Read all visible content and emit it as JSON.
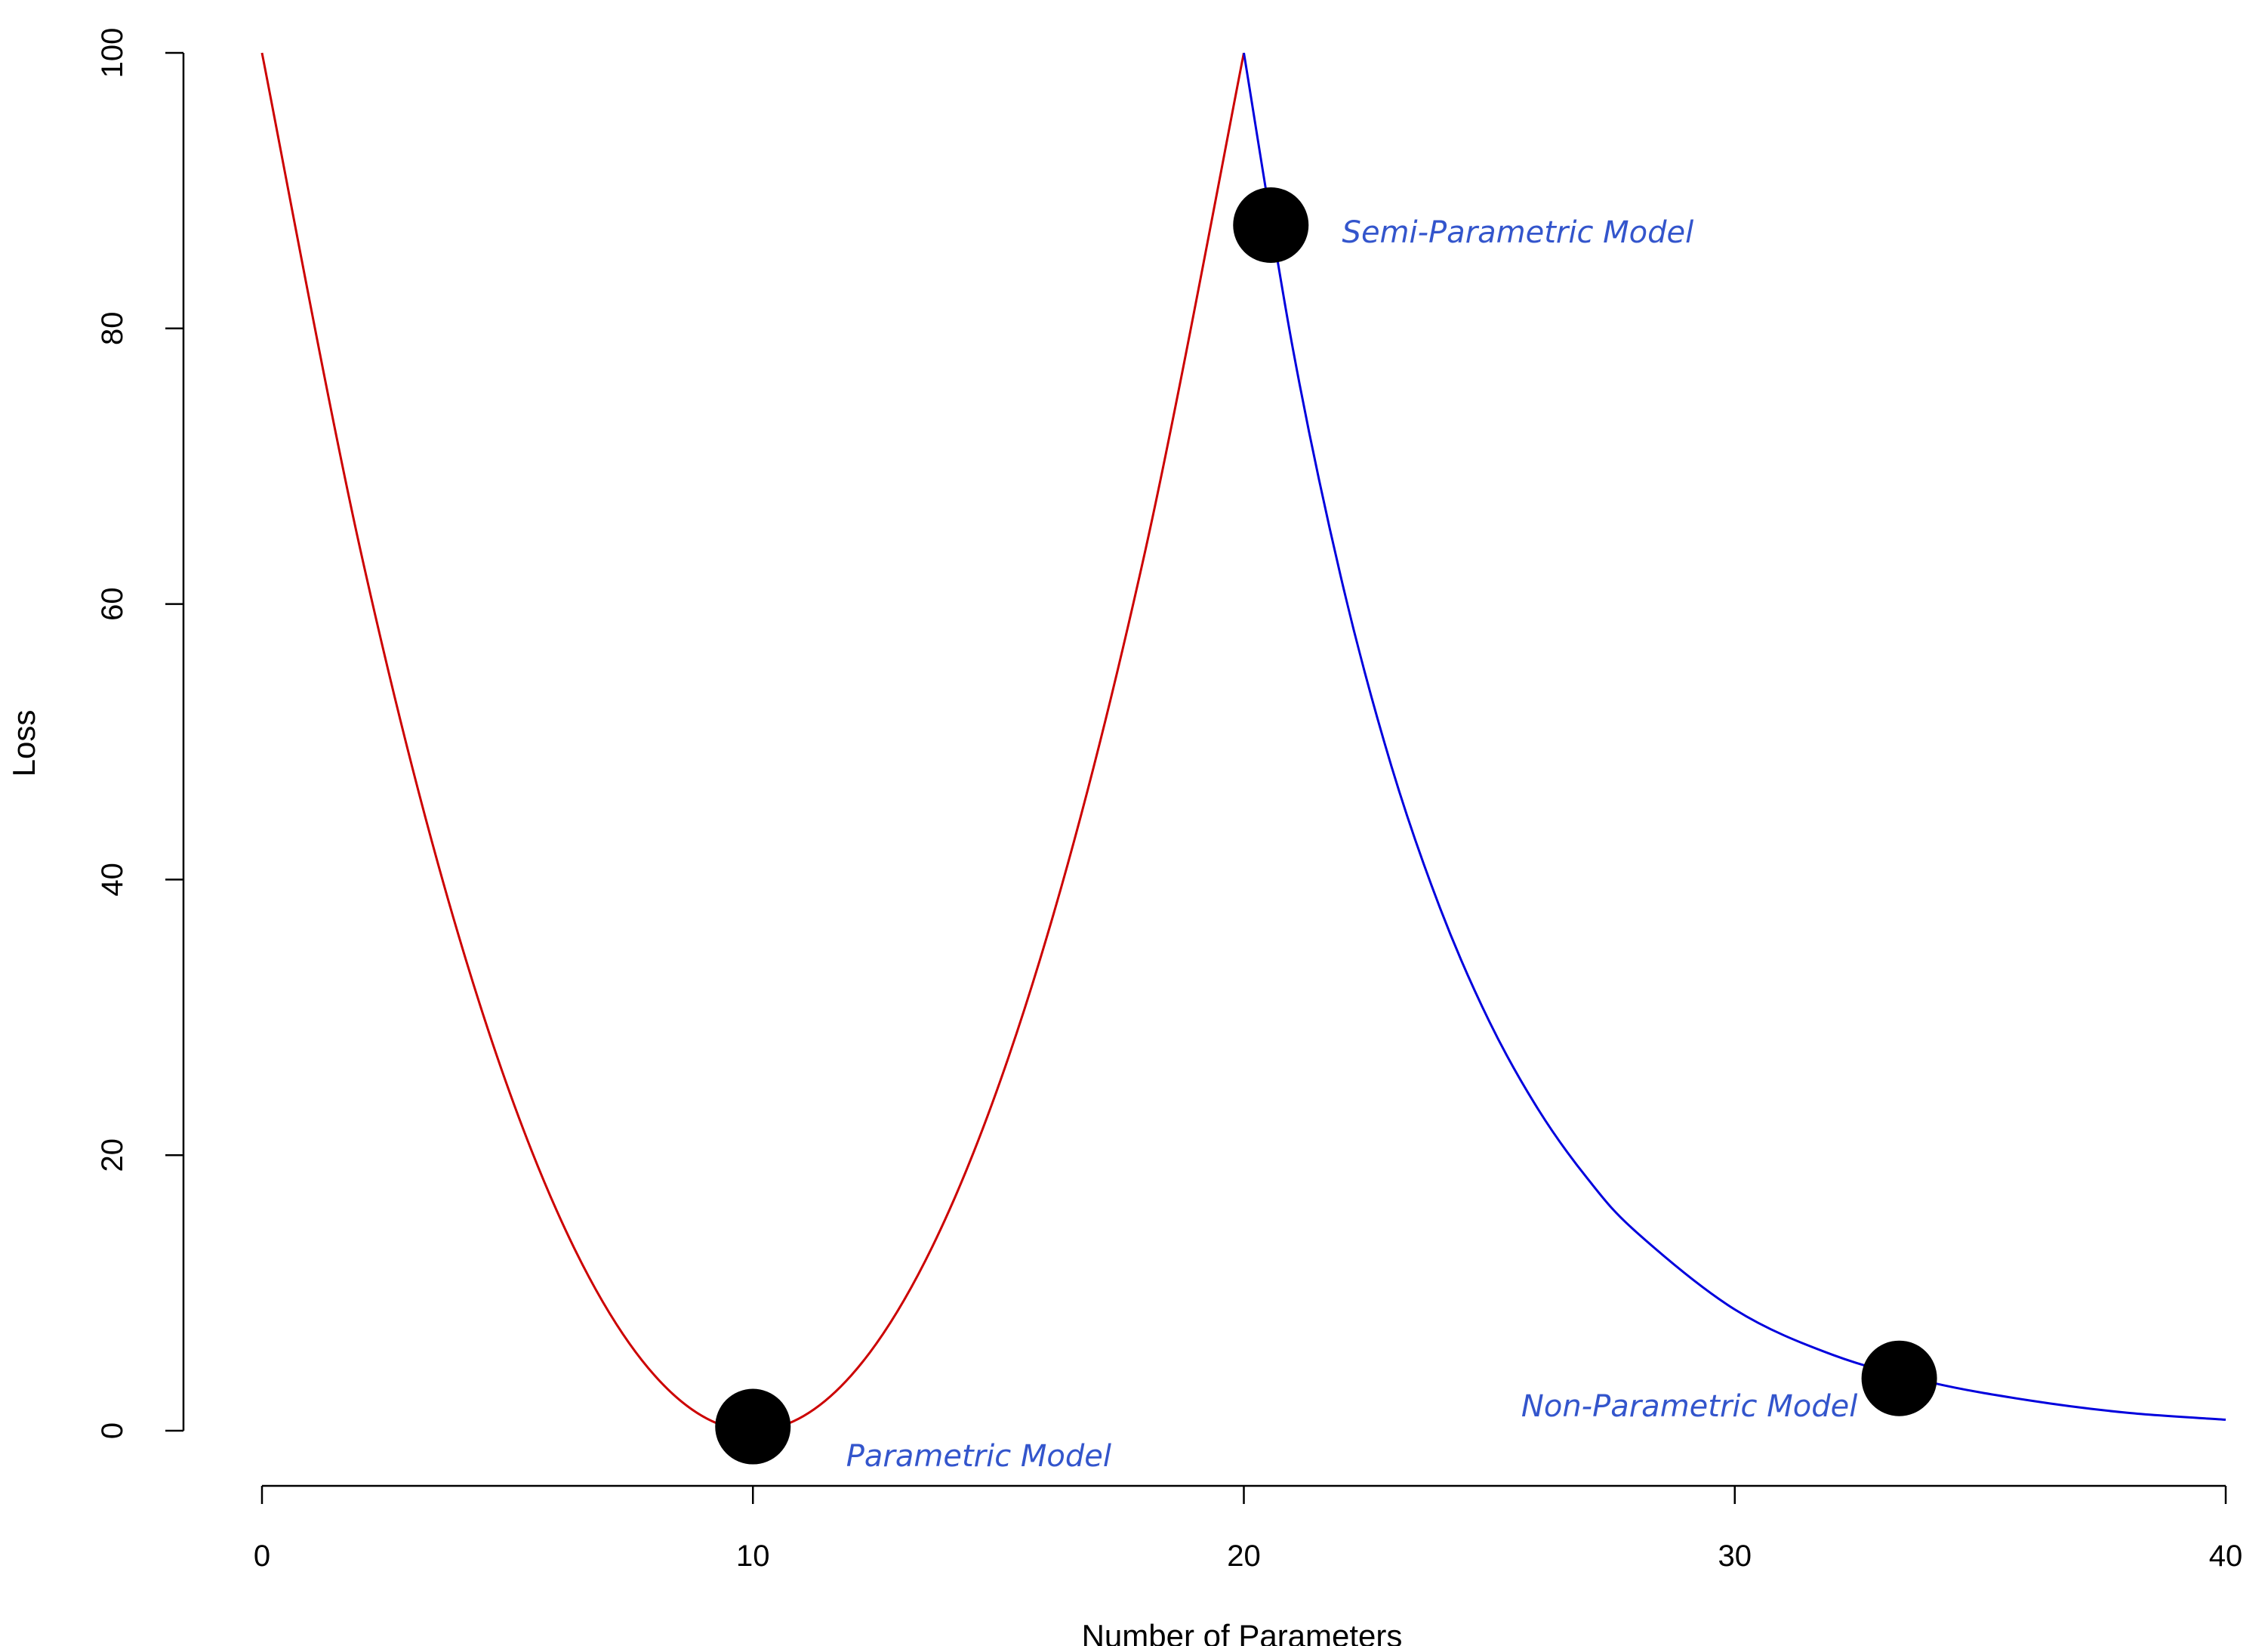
{
  "chart_data": {
    "type": "line",
    "xlabel": "Number of Parameters",
    "ylabel": "Loss",
    "xlim": [
      0,
      40
    ],
    "ylim": [
      0,
      100
    ],
    "x_ticks": [
      "0",
      "10",
      "20",
      "30",
      "40"
    ],
    "y_ticks": [
      "0",
      "20",
      "40",
      "60",
      "80",
      "100"
    ],
    "grid": false,
    "series": [
      {
        "color": "#cc0000",
        "x": [
          0,
          2,
          4,
          6,
          8,
          10,
          12,
          14,
          16,
          18,
          20
        ],
        "y": [
          100,
          64,
          36,
          16,
          4,
          0,
          4,
          16,
          36,
          64,
          100
        ]
      },
      {
        "color": "#0000dd",
        "x": [
          20,
          21,
          22,
          23,
          24,
          25,
          26,
          27,
          28,
          30,
          32,
          34,
          36,
          38,
          40
        ],
        "y": [
          100,
          78.5,
          61.6,
          48.3,
          37.9,
          29.7,
          23.3,
          18.3,
          14.4,
          8.8,
          5.5,
          3.5,
          2.2,
          1.3,
          0.8
        ]
      }
    ],
    "points": [
      {
        "x": 10,
        "y": 0.3,
        "color": "#000000"
      },
      {
        "x": 20.55,
        "y": 87.5,
        "color": "#000000"
      },
      {
        "x": 33.35,
        "y": 3.8,
        "color": "#000000"
      }
    ],
    "annotations": [
      {
        "text": "Parametric Model",
        "x": 11.9,
        "y": -1.8,
        "anchor": "start",
        "color": "#3355cc"
      },
      {
        "text": "Semi-Parametric Model",
        "x": 22.0,
        "y": 87.0,
        "anchor": "start",
        "color": "#3355cc"
      },
      {
        "text": "Non-Parametric Model",
        "x": 32.5,
        "y": 1.8,
        "anchor": "end",
        "color": "#3355cc"
      }
    ]
  }
}
